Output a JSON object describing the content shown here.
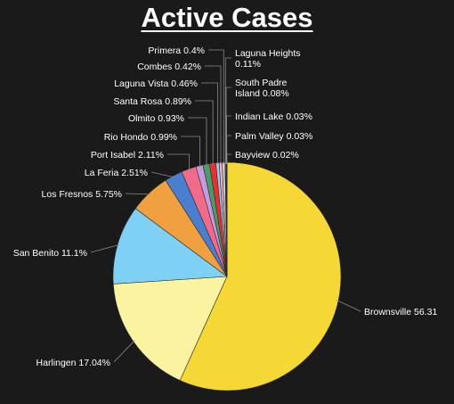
{
  "chart_data": {
    "type": "pie",
    "title": "Active Cases",
    "slices": [
      {
        "label": "Brownsville",
        "value": 56.31,
        "display": "Brownsville 56.31",
        "color": "#f5d835"
      },
      {
        "label": "Harlingen",
        "value": 17.04,
        "display": "Harlingen 17.04%",
        "color": "#fbf3a0"
      },
      {
        "label": "San Benito",
        "value": 11.1,
        "display": "San Benito 11.1%",
        "color": "#7fd0f5"
      },
      {
        "label": "Los Fresnos",
        "value": 5.75,
        "display": "Los Fresnos 5.75%",
        "color": "#f0a040"
      },
      {
        "label": "La Feria",
        "value": 2.51,
        "display": "La Feria 2.51%",
        "color": "#4a7fd0"
      },
      {
        "label": "Port Isabel",
        "value": 2.11,
        "display": "Port Isabel 2.11%",
        "color": "#f06b8a"
      },
      {
        "label": "Rio Hondo",
        "value": 0.99,
        "display": "Rio Hondo 0.99%",
        "color": "#c79ae0"
      },
      {
        "label": "Olmito",
        "value": 0.93,
        "display": "Olmito 0.93%",
        "color": "#4a9a6a"
      },
      {
        "label": "Santa Rosa",
        "value": 0.89,
        "display": "Santa Rosa 0.89%",
        "color": "#e83030"
      },
      {
        "label": "Laguna Vista",
        "value": 0.46,
        "display": "Laguna Vista 0.46%",
        "color": "#a0c8e8"
      },
      {
        "label": "Combes",
        "value": 0.42,
        "display": "Combes 0.42%",
        "color": "#f0b0d0"
      },
      {
        "label": "Primera",
        "value": 0.4,
        "display": "Primera 0.4%",
        "color": "#d0d0d0"
      },
      {
        "label": "Laguna Heights",
        "value": 0.11,
        "display": "Laguna Heights 0.11%",
        "color": "#90d0a0"
      },
      {
        "label": "South Padre Island",
        "value": 0.08,
        "display": "South Padre Island 0.08%",
        "color": "#a0a0a0"
      },
      {
        "label": "Indian Lake",
        "value": 0.03,
        "display": "Indian Lake 0.03%",
        "color": "#e0e0a0"
      },
      {
        "label": "Palm Valley",
        "value": 0.03,
        "display": "Palm Valley 0.03%",
        "color": "#c0c0f0"
      },
      {
        "label": "Bayview",
        "value": 0.02,
        "display": "Bayview 0.02%",
        "color": "#f0c0a0"
      }
    ]
  }
}
